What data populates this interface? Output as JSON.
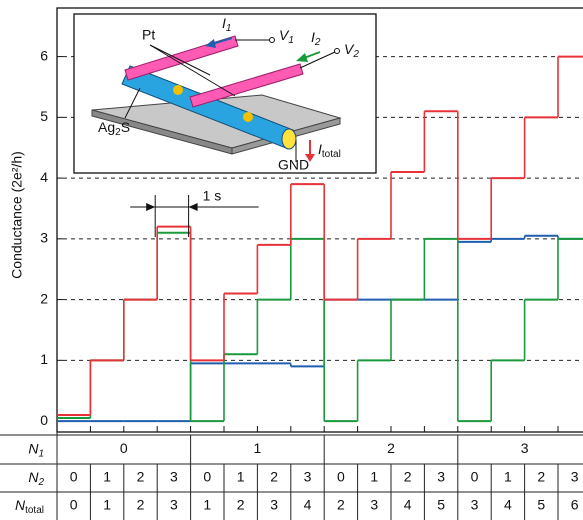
{
  "chart_data": {
    "type": "step",
    "y_label": "Conductance (2e²/h)",
    "ylim": [
      -0.18,
      6.8
    ],
    "yticks": [
      0,
      1,
      2,
      3,
      4,
      5,
      6
    ],
    "grid": true,
    "series": [
      {
        "color": "#1f5fae",
        "values": [
          0,
          0,
          0,
          0,
          0.95,
          0.95,
          0.95,
          0.9,
          2.0,
          2.0,
          2.0,
          2.0,
          2.95,
          3.0,
          3.05,
          3.0
        ]
      },
      {
        "color": "#1a9a3c",
        "values": [
          0.05,
          1.0,
          2.0,
          3.1,
          0,
          1.1,
          2.0,
          3.0,
          0,
          1.0,
          2.0,
          3.0,
          0,
          1.0,
          2.0,
          3.0
        ]
      },
      {
        "color": "#e8323a",
        "values": [
          0.1,
          1.0,
          2.0,
          3.2,
          1.0,
          2.1,
          2.9,
          3.9,
          2.0,
          3.0,
          4.1,
          5.1,
          3.0,
          4.0,
          5.0,
          6.0
        ]
      }
    ],
    "scale_bar": "1 s"
  },
  "inset": {
    "pt": "Pt",
    "i1": "I",
    "i1_sub": "1",
    "v1": "V",
    "v1_sub": "1",
    "i2": "I",
    "i2_sub": "2",
    "v2": "V",
    "v2_sub": "2",
    "ag2s": "Ag",
    "ag2s_sub": "2",
    "ag2s_end": "S",
    "gnd": "GND",
    "itotal": "I",
    "itotal_sub": "total"
  },
  "table": {
    "rows": [
      {
        "symbol": "N",
        "subscript": "1",
        "color": "#1f5fae",
        "span": 4,
        "cells": [
          0,
          1,
          2,
          3
        ]
      },
      {
        "symbol": "N",
        "subscript": "2",
        "color": "#1a9a3c",
        "span": 1,
        "cells": [
          0,
          1,
          2,
          3,
          0,
          1,
          2,
          3,
          0,
          1,
          2,
          3,
          0,
          1,
          2,
          3
        ]
      },
      {
        "symbol": "N",
        "subscript": "total",
        "color": "#e8323a",
        "span": 1,
        "cells": [
          0,
          1,
          2,
          3,
          1,
          2,
          3,
          4,
          2,
          3,
          4,
          5,
          3,
          4,
          5,
          6
        ]
      }
    ]
  }
}
